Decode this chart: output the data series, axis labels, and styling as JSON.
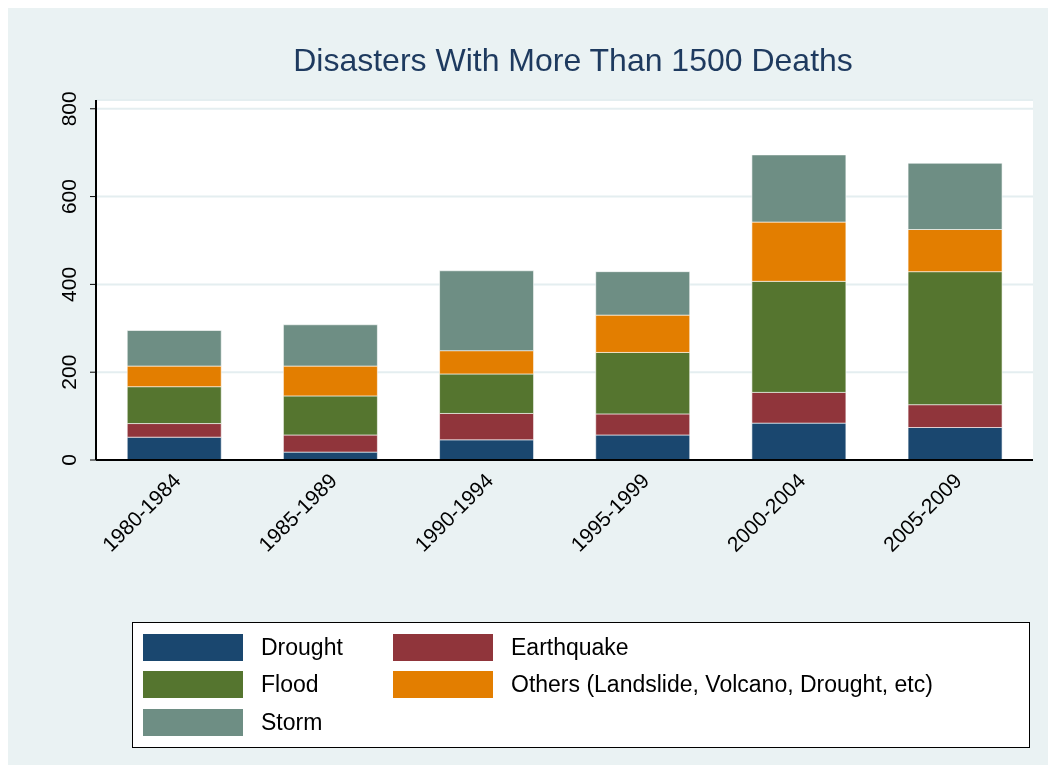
{
  "chart_data": {
    "type": "bar",
    "title": "Disasters With More Than 1500 Deaths",
    "categories": [
      "1980-1984",
      "1985-1989",
      "1990-1994",
      "1995-1999",
      "2000-2004",
      "2005-2009"
    ],
    "stacked": true,
    "series": [
      {
        "name": "Drought",
        "color": "#1a476f",
        "values": [
          52,
          18,
          46,
          57,
          84,
          74
        ]
      },
      {
        "name": "Earthquake",
        "color": "#90353b",
        "values": [
          31,
          39,
          60,
          48,
          70,
          52
        ]
      },
      {
        "name": "Flood",
        "color": "#55752f",
        "values": [
          84,
          89,
          90,
          140,
          253,
          303
        ]
      },
      {
        "name": "Others (Landslide, Volcano, Drought, etc)",
        "color": "#e37e00",
        "values": [
          47,
          68,
          53,
          85,
          135,
          96
        ]
      },
      {
        "name": "Storm",
        "color": "#6e8e84",
        "values": [
          81,
          94,
          182,
          99,
          153,
          151
        ]
      }
    ],
    "ylim": [
      0,
      820
    ],
    "yticks": [
      0,
      200,
      400,
      600,
      800
    ],
    "grid": "y",
    "legend": "bottom"
  }
}
